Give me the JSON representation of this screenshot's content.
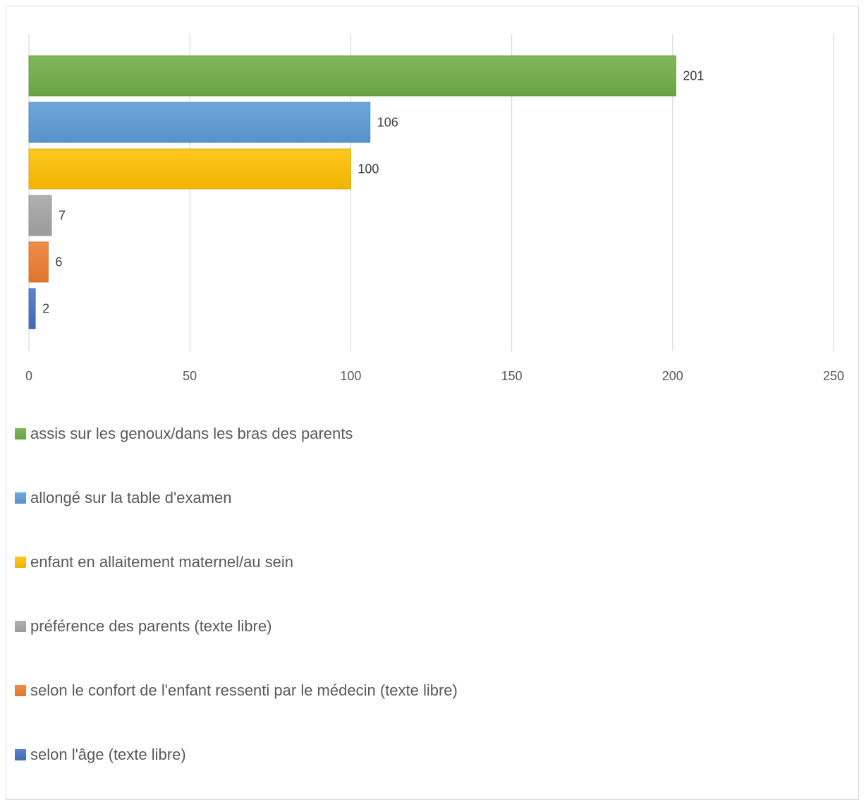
{
  "chart_data": {
    "type": "bar",
    "orientation": "horizontal",
    "categories": [
      "assis sur les genoux/dans les bras des parents",
      "allongé sur la table d'examen",
      "enfant en allaitement maternel/au sein",
      "préférence des parents (texte libre)",
      "selon le confort de l'enfant ressenti par le médecin (texte libre)",
      "selon l'âge (texte libre)"
    ],
    "values": [
      201,
      106,
      100,
      7,
      6,
      2
    ],
    "colors": [
      "#70ad47",
      "#5b9bd5",
      "#ffc000",
      "#a5a5a5",
      "#ed7d31",
      "#4472c4"
    ],
    "xlim": [
      0,
      250
    ],
    "xticks": [
      0,
      50,
      100,
      150,
      200,
      250
    ],
    "grid": "vertical",
    "legend_position": "bottom",
    "title": "",
    "xlabel": "",
    "ylabel": ""
  }
}
